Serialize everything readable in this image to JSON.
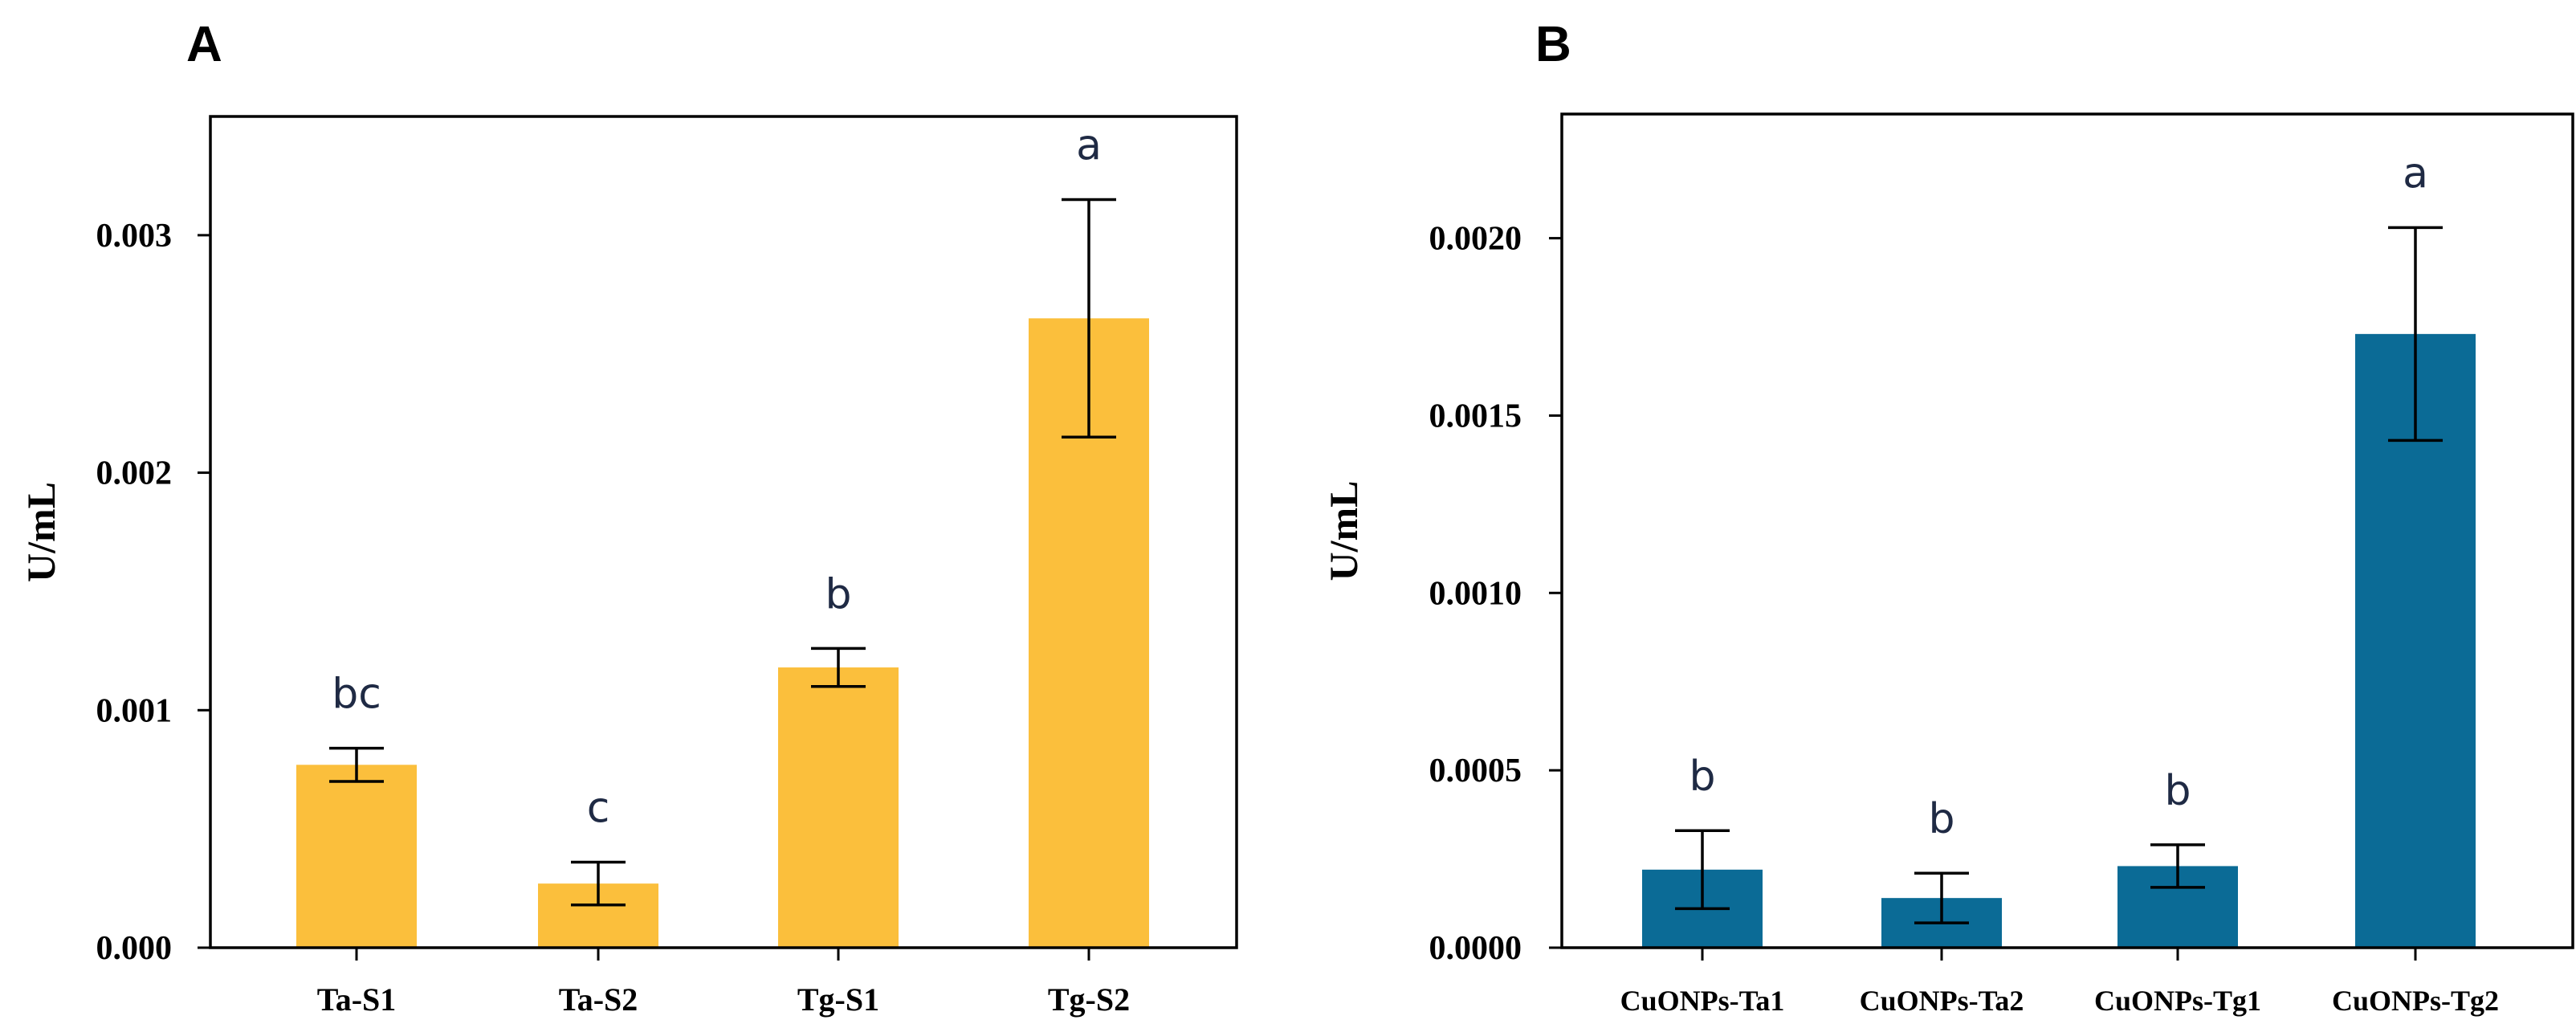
{
  "chart_data": [
    {
      "type": "bar",
      "panel_label": "A",
      "categories": [
        "Ta-S1",
        "Ta-S2",
        "Tg-S1",
        "Tg-S2"
      ],
      "values": [
        0.00077,
        0.00027,
        0.00118,
        0.00265
      ],
      "errors": [
        7e-05,
        9e-05,
        8e-05,
        0.0005
      ],
      "significance": [
        "bc",
        "c",
        "b",
        "a"
      ],
      "ylabel": "U/mL",
      "xlabel": "",
      "ylim": [
        0,
        0.0035
      ],
      "yticks": [
        "0.000",
        "0.001",
        "0.002",
        "0.003"
      ],
      "ytick_values": [
        0,
        0.001,
        0.002,
        0.003
      ],
      "color": "#fbbf3c",
      "grid": false
    },
    {
      "type": "bar",
      "panel_label": "B",
      "categories": [
        "CuONPs-Ta1",
        "CuONPs-Ta2",
        "CuONPs-Tg1",
        "CuONPs-Tg2"
      ],
      "values": [
        0.00022,
        0.00014,
        0.00023,
        0.00173
      ],
      "errors": [
        0.00011,
        7e-05,
        6e-05,
        0.0003
      ],
      "significance": [
        "b",
        "b",
        "b",
        "a"
      ],
      "ylabel": "U/mL",
      "xlabel": "",
      "ylim": [
        0,
        0.00235
      ],
      "yticks": [
        "0.0000",
        "0.0005",
        "0.0010",
        "0.0015",
        "0.0020"
      ],
      "ytick_values": [
        0,
        0.0005,
        0.001,
        0.0015,
        0.002
      ],
      "color": "#0b6b96",
      "grid": false
    }
  ]
}
